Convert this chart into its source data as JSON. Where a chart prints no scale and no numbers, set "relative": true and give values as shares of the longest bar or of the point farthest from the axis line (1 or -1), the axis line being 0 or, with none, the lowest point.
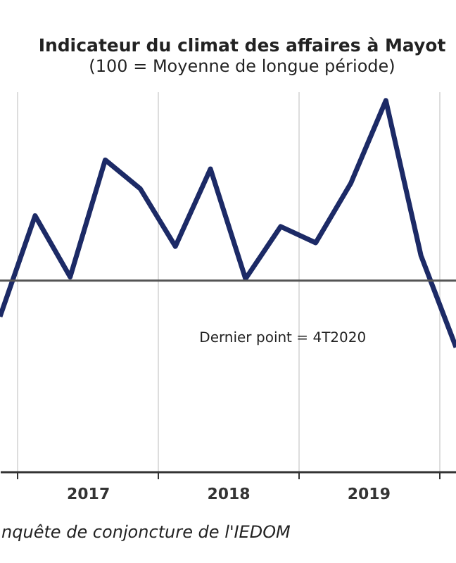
{
  "chart_data": {
    "type": "line",
    "title": "Indicateur du climat des affaires à Mayot",
    "subtitle": "(100 = Moyenne de longue période)",
    "x": [
      2016.875,
      2017.125,
      2017.375,
      2017.625,
      2017.875,
      2018.125,
      2018.375,
      2018.625,
      2018.875,
      2019.125,
      2019.375,
      2019.625,
      2019.875,
      2020.125
    ],
    "series": [
      {
        "color": "#1c2a66",
        "values": [
          -0.2,
          0.36,
          0.02,
          0.67,
          0.51,
          0.19,
          0.62,
          0.01,
          0.3,
          0.21,
          0.54,
          1.0,
          0.14,
          -0.37
        ]
      }
    ],
    "relative": true,
    "xlim": [
      2016.875,
      2020.125
    ],
    "xticks": [
      {
        "value": 2017,
        "label": null
      },
      {
        "value": 2018,
        "label": null
      },
      {
        "value": 2019,
        "label": null
      },
      {
        "value": 2020,
        "label": null
      },
      {
        "value": 2017.5,
        "label": "2017"
      },
      {
        "value": 2018.5,
        "label": "2018"
      },
      {
        "value": 2019.5,
        "label": "2019"
      }
    ],
    "ref_lines": [
      {
        "axis": "y",
        "value": 0,
        "color": "#555555"
      }
    ],
    "grid": "x",
    "marker": "none",
    "line_style": "solid",
    "annotations": [
      "Dernier point = 4T2020",
      "nquête de conjoncture de l'IEDOM"
    ]
  }
}
